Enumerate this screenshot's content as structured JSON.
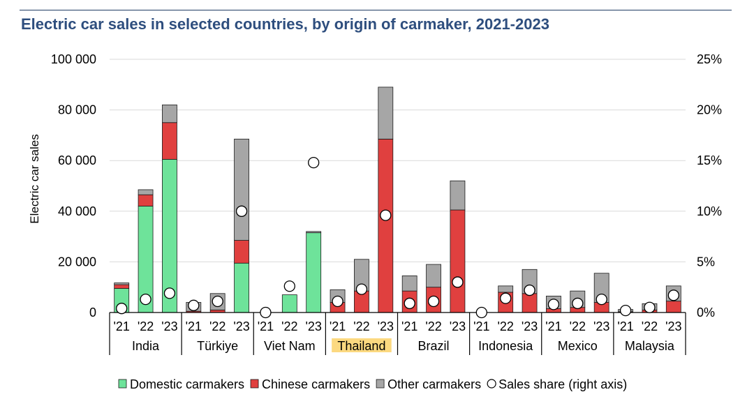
{
  "title": "Electric car sales in selected countries, by origin of carmaker, 2021-2023",
  "chart_data": {
    "type": "bar",
    "stacked": true,
    "title": "Electric car sales in selected countries, by origin of carmaker, 2021-2023",
    "ylabel": "Electric car sales",
    "ylim": [
      0,
      100000
    ],
    "y_ticks": [
      "0",
      "20 000",
      "40 000",
      "60 000",
      "80 000",
      "100 000"
    ],
    "y2lim": [
      0,
      25
    ],
    "y2_ticks": [
      "0%",
      "5%",
      "10%",
      "15%",
      "20%",
      "25%"
    ],
    "year_labels": [
      "'21",
      "'22",
      "'23"
    ],
    "groups": [
      "India",
      "Türkiye",
      "Viet Nam",
      "Thailand",
      "Brazil",
      "Indonesia",
      "Mexico",
      "Malaysia"
    ],
    "highlighted_group": "Thailand",
    "highlight_color": "#fcd980",
    "categories": [
      "India '21",
      "India '22",
      "India '23",
      "Türkiye '21",
      "Türkiye '22",
      "Türkiye '23",
      "Viet Nam '21",
      "Viet Nam '22",
      "Viet Nam '23",
      "Thailand '21",
      "Thailand '22",
      "Thailand '23",
      "Brazil '21",
      "Brazil '22",
      "Brazil '23",
      "Indonesia '21",
      "Indonesia '22",
      "Indonesia '23",
      "Mexico '21",
      "Mexico '22",
      "Mexico '23",
      "Malaysia '21",
      "Malaysia '22",
      "Malaysia '23"
    ],
    "series": [
      {
        "name": "Domestic carmakers",
        "color": "#6ee39a",
        "axis": "left",
        "values": [
          9500,
          42000,
          60500,
          0,
          0,
          19500,
          0,
          7000,
          31500,
          0,
          0,
          0,
          0,
          0,
          0,
          0,
          0,
          0,
          0,
          0,
          0,
          0,
          0,
          0
        ]
      },
      {
        "name": "Chinese carmakers",
        "color": "#e0403f",
        "axis": "left",
        "values": [
          1500,
          4500,
          14500,
          500,
          1000,
          9000,
          0,
          0,
          0,
          4000,
          8500,
          68500,
          8500,
          10000,
          40500,
          0,
          8000,
          7500,
          1500,
          2000,
          4000,
          300,
          1000,
          4500
        ]
      },
      {
        "name": "Other carmakers",
        "color": "#a6a6a6",
        "axis": "left",
        "values": [
          700,
          2000,
          7000,
          3500,
          6500,
          40000,
          0,
          0,
          500,
          5000,
          12500,
          20500,
          6000,
          9000,
          11500,
          0,
          2500,
          9500,
          5000,
          6500,
          11500,
          900,
          2500,
          6000
        ]
      },
      {
        "name": "Sales share (right axis)",
        "type": "scatter",
        "axis": "right",
        "unit": "%",
        "values": [
          0.4,
          1.3,
          1.9,
          0.7,
          1.1,
          10.0,
          0.0,
          2.6,
          14.8,
          1.1,
          2.3,
          9.6,
          0.9,
          1.1,
          3.0,
          0.0,
          1.4,
          2.2,
          0.8,
          0.9,
          1.3,
          0.2,
          0.5,
          1.7
        ]
      }
    ],
    "legend_position": "bottom",
    "grid": "horizontal"
  }
}
